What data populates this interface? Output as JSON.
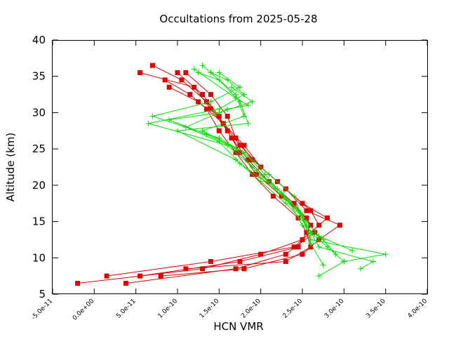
{
  "chart_data": {
    "type": "line",
    "title": "Occultations from 2025-05-28",
    "xlabel": "HCN VMR",
    "ylabel": "Altitude (km)",
    "xlim": [
      -5e-11,
      4e-10
    ],
    "ylim": [
      5,
      40
    ],
    "xticks": [
      "-5.0e-11",
      "0.0e+00",
      "5.0e-11",
      "1.0e-10",
      "1.5e-10",
      "2.0e-10",
      "2.5e-10",
      "3.0e-10",
      "3.5e-10",
      "4.0e-10"
    ],
    "xtick_values": [
      -5e-11,
      0,
      5e-11,
      1e-10,
      1.5e-10,
      2e-10,
      2.5e-10,
      3e-10,
      3.5e-10,
      4e-10
    ],
    "yticks": [
      "5",
      "10",
      "15",
      "20",
      "25",
      "30",
      "35",
      "40"
    ],
    "ytick_values": [
      5,
      10,
      15,
      20,
      25,
      30,
      35,
      40
    ],
    "grid": false,
    "colors": {
      "red": "#e00000",
      "green": "#00e000"
    },
    "series": [
      {
        "color": "#e00000",
        "marker": "square",
        "points": [
          [
            -2e-11,
            6.5
          ],
          [
            1.3e-10,
            8.5
          ],
          [
            2e-10,
            10.5
          ],
          [
            2.5e-10,
            12.5
          ],
          [
            2.8e-10,
            15.5
          ],
          [
            2.5e-10,
            17.5
          ],
          [
            2.2e-10,
            20.5
          ],
          [
            1.9e-10,
            23.5
          ],
          [
            1.7e-10,
            26.5
          ],
          [
            1.6e-10,
            29.5
          ],
          [
            1.4e-10,
            32.5
          ],
          [
            1.1e-10,
            35.5
          ]
        ]
      },
      {
        "color": "#e00000",
        "marker": "square",
        "points": [
          [
            1.5e-11,
            7.5
          ],
          [
            1.4e-10,
            9.5
          ],
          [
            2.4e-10,
            11.5
          ],
          [
            2.7e-10,
            14.5
          ],
          [
            2.6e-10,
            16.5
          ],
          [
            2.3e-10,
            19.5
          ],
          [
            2e-10,
            22.5
          ],
          [
            1.8e-10,
            25.5
          ],
          [
            1.55e-10,
            28.5
          ],
          [
            1.35e-10,
            31.5
          ],
          [
            1.05e-10,
            34.5
          ],
          [
            7e-11,
            36.5
          ]
        ]
      },
      {
        "color": "#e00000",
        "marker": "square",
        "points": [
          [
            3.8e-11,
            6.5
          ],
          [
            1.7e-10,
            8.5
          ],
          [
            2.3e-10,
            10.5
          ],
          [
            2.65e-10,
            13.5
          ],
          [
            2.55e-10,
            15.5
          ],
          [
            2.25e-10,
            18.5
          ],
          [
            1.95e-10,
            21.5
          ],
          [
            1.75e-10,
            24.5
          ],
          [
            1.6e-10,
            27.5
          ],
          [
            1.4e-10,
            30.5
          ],
          [
            1.2e-10,
            33.5
          ],
          [
            5.5e-11,
            35.5
          ]
        ]
      },
      {
        "color": "#e00000",
        "marker": "square",
        "points": [
          [
            5.5e-11,
            7.5
          ],
          [
            1.75e-10,
            9.5
          ],
          [
            2.45e-10,
            11.5
          ],
          [
            2.6e-10,
            14.5
          ],
          [
            2.4e-10,
            17.5
          ],
          [
            2.1e-10,
            20.5
          ],
          [
            1.85e-10,
            23.5
          ],
          [
            1.65e-10,
            26.5
          ],
          [
            1.5e-10,
            29.5
          ],
          [
            1.3e-10,
            32.5
          ],
          [
            1e-10,
            35.5
          ]
        ]
      },
      {
        "color": "#e00000",
        "marker": "square",
        "points": [
          [
            8e-11,
            7.5
          ],
          [
            1.8e-10,
            8.5
          ],
          [
            2.5e-10,
            10.5
          ],
          [
            2.7e-10,
            12.5
          ],
          [
            2.95e-10,
            14.5
          ],
          [
            2.55e-10,
            16.5
          ],
          [
            2.3e-10,
            19.5
          ],
          [
            2e-10,
            22.5
          ],
          [
            1.75e-10,
            25.5
          ],
          [
            1.55e-10,
            28.5
          ],
          [
            1.25e-10,
            31.5
          ],
          [
            9e-11,
            33.5
          ]
        ]
      },
      {
        "color": "#e00000",
        "marker": "square",
        "points": [
          [
            1.1e-10,
            8.5
          ],
          [
            2.3e-10,
            9.5
          ],
          [
            2.6e-10,
            11.5
          ],
          [
            2.55e-10,
            13.5
          ],
          [
            2.45e-10,
            15.5
          ],
          [
            2.15e-10,
            18.5
          ],
          [
            1.9e-10,
            21.5
          ],
          [
            1.7e-10,
            24.5
          ],
          [
            1.5e-10,
            27.5
          ],
          [
            1.35e-10,
            30.5
          ],
          [
            1.15e-10,
            32.5
          ],
          [
            8.5e-11,
            34.5
          ]
        ]
      },
      {
        "color": "#00e000",
        "marker": "plus",
        "points": [
          [
            2.7e-10,
            7.5
          ],
          [
            3e-10,
            9.5
          ],
          [
            3.5e-10,
            10.5
          ],
          [
            2.6e-10,
            12.5
          ],
          [
            2.5e-10,
            15.5
          ],
          [
            2.4e-10,
            18.5
          ],
          [
            2.1e-10,
            21.5
          ],
          [
            1.8e-10,
            24.5
          ],
          [
            1.3e-10,
            27.5
          ],
          [
            1.8e-10,
            29.5
          ],
          [
            1.7e-10,
            32.5
          ],
          [
            1.3e-10,
            36.5
          ]
        ]
      },
      {
        "color": "#00e000",
        "marker": "plus",
        "points": [
          [
            3.2e-10,
            8.5
          ],
          [
            3.35e-10,
            9.5
          ],
          [
            2.7e-10,
            11.5
          ],
          [
            2.55e-10,
            14.5
          ],
          [
            2.3e-10,
            17.5
          ],
          [
            2e-10,
            20.5
          ],
          [
            1.7e-10,
            23.5
          ],
          [
            1e-10,
            27.5
          ],
          [
            1.85e-10,
            28.5
          ],
          [
            1.75e-10,
            31.5
          ],
          [
            1.5e-10,
            34.5
          ],
          [
            1.25e-10,
            35.5
          ]
        ]
      },
      {
        "color": "#00e000",
        "marker": "plus",
        "points": [
          [
            3e-10,
            9.5
          ],
          [
            2.8e-10,
            11.5
          ],
          [
            2.6e-10,
            13.5
          ],
          [
            2.45e-10,
            16.5
          ],
          [
            2.2e-10,
            19.5
          ],
          [
            1.9e-10,
            22.5
          ],
          [
            1.6e-10,
            25.5
          ],
          [
            6.5e-11,
            28.5
          ],
          [
            1.5e-10,
            30.5
          ],
          [
            1.8e-10,
            32.5
          ],
          [
            1.6e-10,
            34.5
          ],
          [
            1.4e-10,
            35.5
          ]
        ]
      },
      {
        "color": "#00e000",
        "marker": "plus",
        "points": [
          [
            2.9e-10,
            10.5
          ],
          [
            2.75e-10,
            12.5
          ],
          [
            2.5e-10,
            14.5
          ],
          [
            2.35e-10,
            17.5
          ],
          [
            2.05e-10,
            21.5
          ],
          [
            1.8e-10,
            24.5
          ],
          [
            1.5e-10,
            26.5
          ],
          [
            7e-11,
            29.5
          ],
          [
            1.4e-10,
            31.5
          ],
          [
            1.75e-10,
            33.5
          ],
          [
            1.5e-10,
            35.5
          ]
        ]
      },
      {
        "color": "#00e000",
        "marker": "plus",
        "points": [
          [
            3.1e-10,
            11.0
          ],
          [
            2.7e-10,
            13.0
          ],
          [
            2.55e-10,
            15.0
          ],
          [
            2.3e-10,
            18.0
          ],
          [
            1.95e-10,
            22.0
          ],
          [
            1.7e-10,
            25.0
          ],
          [
            1.35e-10,
            27.0
          ],
          [
            9e-11,
            29.0
          ],
          [
            1.5e-10,
            30.0
          ],
          [
            1.9e-10,
            31.5
          ],
          [
            1.65e-10,
            33.5
          ]
        ]
      },
      {
        "color": "#00e000",
        "marker": "plus",
        "points": [
          [
            2.75e-10,
            9.0
          ],
          [
            2.6e-10,
            12.0
          ],
          [
            2.5e-10,
            16.0
          ],
          [
            2.25e-10,
            19.0
          ],
          [
            2e-10,
            21.0
          ],
          [
            1.75e-10,
            23.0
          ],
          [
            1.5e-10,
            26.0
          ],
          [
            1.1e-10,
            28.0
          ],
          [
            1.6e-10,
            30.5
          ],
          [
            1.85e-10,
            31.0
          ],
          [
            1.7e-10,
            32.0
          ],
          [
            1.2e-10,
            36.0
          ]
        ]
      }
    ]
  }
}
